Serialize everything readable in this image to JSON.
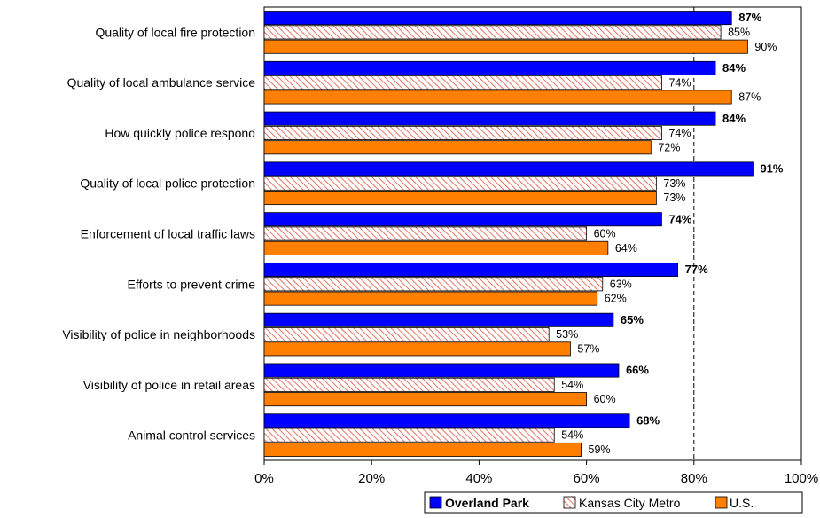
{
  "chart_data": {
    "type": "bar",
    "orientation": "horizontal",
    "categories": [
      "Quality of local fire protection",
      "Quality of local ambulance service",
      "How quickly police respond",
      "Quality of local police protection",
      "Enforcement of local traffic laws",
      "Efforts to prevent crime",
      "Visibility of police in neighborhoods",
      "Visibility of police in retail areas",
      "Animal control services"
    ],
    "series": [
      {
        "name": "Overland Park",
        "values": [
          87,
          84,
          84,
          91,
          74,
          77,
          65,
          66,
          68
        ],
        "labels": [
          "87%",
          "84%",
          "84%",
          "91%",
          "74%",
          "77%",
          "65%",
          "66%",
          "68%"
        ],
        "color": "#0000ff",
        "pattern": "solid",
        "label_bold": true
      },
      {
        "name": "Kansas City Metro",
        "values": [
          85,
          74,
          74,
          73,
          60,
          63,
          53,
          54,
          54
        ],
        "labels": [
          "85%",
          "74%",
          "74%",
          "73%",
          "60%",
          "63%",
          "53%",
          "54%",
          "54%"
        ],
        "color": "#ff9999",
        "pattern": "hatch",
        "label_bold": false
      },
      {
        "name": "U.S.",
        "values": [
          90,
          87,
          72,
          73,
          64,
          62,
          57,
          60,
          59
        ],
        "labels": [
          "90%",
          "87%",
          "72%",
          "73%",
          "64%",
          "62%",
          "57%",
          "60%",
          "59%"
        ],
        "color": "#ff8000",
        "pattern": "solid",
        "label_bold": false
      }
    ],
    "xlim": [
      0,
      100
    ],
    "x_ticks": [
      "0%",
      "20%",
      "40%",
      "60%",
      "80%",
      "100%"
    ],
    "x_tick_values": [
      0,
      20,
      40,
      60,
      80,
      100
    ],
    "reference_line": 80,
    "legend_position": "bottom-right",
    "grid": false,
    "title": "",
    "xlabel": "",
    "ylabel": ""
  }
}
